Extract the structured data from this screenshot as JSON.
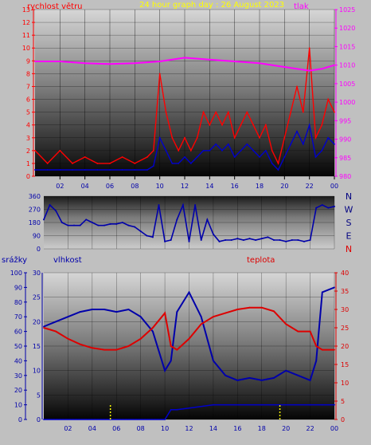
{
  "colors": {
    "wind": "#ff0000",
    "gust_avg": "#0000cc",
    "pressure": "#ff00ff",
    "direction": "#0000aa",
    "humidity": "#0000aa",
    "temperature": "#dd0000",
    "rain_rate": "#0000cc",
    "rain_total": "#ffff00",
    "title": "#ffff00",
    "panel_top": "#cfcfcf",
    "panel_bottom": "#000000"
  },
  "chart_data": [
    {
      "type": "line",
      "panel": "wind_pressure",
      "title": "24 hour graph day : 26 August 2023",
      "ylabel_left": "rychlost větru",
      "ylabel_right": "tlak",
      "x_ticks": [
        "02",
        "04",
        "06",
        "08",
        "10",
        "12",
        "14",
        "16",
        "18",
        "20",
        "22",
        "00"
      ],
      "ylim_left": [
        0,
        13
      ],
      "yticks_left": [
        "0",
        "1",
        "2",
        "3",
        "4",
        "5",
        "6",
        "7",
        "8",
        "9",
        "10",
        "11",
        "12",
        "13"
      ],
      "ylim_right": [
        980,
        1025
      ],
      "yticks_right": [
        "980",
        "985",
        "990",
        "995",
        "1000",
        "1005",
        "1010",
        "1015",
        "1020",
        "1025"
      ],
      "grid": true,
      "series": [
        {
          "key": "wind_gust",
          "x": [
            0,
            1,
            2,
            3,
            4,
            5,
            6,
            7,
            8,
            9,
            9.5,
            10,
            10.5,
            11,
            11.5,
            12,
            12.5,
            13,
            13.5,
            14,
            14.5,
            15,
            15.5,
            16,
            16.5,
            17,
            17.5,
            18,
            18.5,
            19,
            19.5,
            20,
            20.5,
            21,
            21.5,
            22,
            22.5,
            23,
            23.5,
            24
          ],
          "values": [
            2,
            1,
            2,
            1,
            1.5,
            1,
            1,
            1.5,
            1,
            1.5,
            2,
            8,
            5,
            3,
            2,
            3,
            2,
            3,
            5,
            4,
            5,
            4,
            5,
            3,
            4,
            5,
            4,
            3,
            4,
            2,
            1,
            3,
            5,
            7,
            5,
            10,
            3,
            4,
            6,
            5
          ]
        },
        {
          "key": "wind_avg",
          "x": [
            0,
            1,
            2,
            3,
            4,
            5,
            6,
            7,
            8,
            9,
            9.5,
            10,
            10.5,
            11,
            11.5,
            12,
            12.5,
            13,
            13.5,
            14,
            14.5,
            15,
            15.5,
            16,
            16.5,
            17,
            17.5,
            18,
            18.5,
            19,
            19.5,
            20,
            20.5,
            21,
            21.5,
            22,
            22.5,
            23,
            23.5,
            24
          ],
          "values": [
            0.5,
            0.5,
            0.5,
            0.5,
            0.5,
            0.5,
            0.5,
            0.5,
            0.5,
            0.5,
            0.8,
            3,
            2,
            1,
            1,
            1.5,
            1,
            1.5,
            2,
            2,
            2.5,
            2,
            2.5,
            1.5,
            2,
            2.5,
            2,
            1.5,
            2,
            1,
            0.5,
            1.5,
            2.5,
            3.5,
            2.5,
            4,
            1.5,
            2,
            3,
            2.5
          ]
        },
        {
          "key": "pressure",
          "x": [
            0,
            2,
            4,
            6,
            8,
            10,
            12,
            14,
            16,
            18,
            20,
            22,
            23,
            24
          ],
          "values": [
            1011,
            1011,
            1010.5,
            1010.3,
            1010.5,
            1011,
            1012,
            1011.5,
            1011,
            1010.5,
            1009.5,
            1008.5,
            1009,
            1010
          ]
        }
      ]
    },
    {
      "type": "scatter",
      "panel": "wind_direction",
      "ylim": [
        0,
        360
      ],
      "yticks": [
        "0",
        "90",
        "180",
        "270",
        "360"
      ],
      "compass_labels": [
        "N",
        "W",
        "S",
        "E",
        "N"
      ],
      "x": [
        0,
        0.5,
        1,
        1.5,
        2,
        2.5,
        3,
        3.5,
        4,
        4.5,
        5,
        5.5,
        6,
        6.5,
        7,
        7.5,
        8,
        8.5,
        9,
        9.5,
        10,
        10.5,
        11,
        11.5,
        12,
        12.5,
        13,
        13.5,
        14,
        14.5,
        15,
        15.5,
        16,
        16.5,
        17,
        17.5,
        18,
        18.5,
        19,
        19.5,
        20,
        20.5,
        21,
        21.5,
        22,
        22.5,
        23,
        23.5,
        24
      ],
      "values": [
        200,
        300,
        260,
        180,
        160,
        160,
        160,
        200,
        180,
        160,
        160,
        170,
        170,
        180,
        160,
        150,
        120,
        90,
        80,
        300,
        50,
        60,
        200,
        300,
        50,
        300,
        60,
        200,
        100,
        50,
        60,
        60,
        70,
        60,
        70,
        60,
        70,
        80,
        60,
        60,
        50,
        60,
        60,
        50,
        60,
        280,
        300,
        280,
        290
      ]
    },
    {
      "type": "line",
      "panel": "humidity_temp_rain",
      "legend": [
        "srážky",
        "vlhkost",
        "teplota"
      ],
      "x_ticks": [
        "02",
        "04",
        "06",
        "08",
        "10",
        "12",
        "14",
        "16",
        "18",
        "20",
        "22",
        "00"
      ],
      "ylim_rain": [
        0,
        100
      ],
      "yticks_rain": [
        "0",
        "10",
        "20",
        "30",
        "40",
        "50",
        "60",
        "70",
        "80",
        "90",
        "100"
      ],
      "ylim_humidity": [
        0,
        30
      ],
      "yticks_humidity": [
        "0",
        "5",
        "10",
        "15",
        "20",
        "25",
        "30"
      ],
      "ylim_temperature": [
        0,
        40
      ],
      "yticks_temperature": [
        "0",
        "5",
        "10",
        "15",
        "20",
        "25",
        "30",
        "35",
        "40"
      ],
      "grid": true,
      "series": [
        {
          "key": "humidity",
          "x": [
            0,
            1,
            2,
            3,
            4,
            5,
            6,
            7,
            8,
            9,
            10,
            10.5,
            11,
            12,
            13,
            14,
            15,
            16,
            17,
            18,
            19,
            20,
            21,
            22,
            22.5,
            23,
            24
          ],
          "values": [
            19,
            20,
            21,
            22,
            22.5,
            22.5,
            22,
            22.5,
            21,
            18,
            10,
            12,
            22,
            26,
            21,
            12,
            9,
            8,
            8.5,
            8,
            8.5,
            10,
            9,
            8,
            12,
            26,
            27
          ]
        },
        {
          "key": "temperature",
          "x": [
            0,
            1,
            2,
            3,
            4,
            5,
            6,
            7,
            8,
            9,
            10,
            10.5,
            11,
            12,
            13,
            14,
            15,
            16,
            17,
            18,
            19,
            20,
            21,
            22,
            22.5,
            23,
            24
          ],
          "values": [
            25,
            24,
            22,
            20.5,
            19.5,
            19,
            19,
            20,
            22,
            25,
            29,
            20,
            19,
            22,
            26,
            28,
            29,
            30,
            30.5,
            30.5,
            29.5,
            26,
            24,
            24,
            20,
            19,
            19
          ]
        },
        {
          "key": "rain_rate",
          "x": [
            0,
            10,
            10.5,
            11,
            14,
            18,
            22,
            23,
            24
          ],
          "values": [
            0,
            0,
            2,
            2,
            3,
            3,
            3,
            3,
            3
          ]
        },
        {
          "key": "rain_total",
          "x": [
            5.5,
            19.5
          ],
          "values": [
            3,
            3
          ]
        }
      ]
    }
  ]
}
